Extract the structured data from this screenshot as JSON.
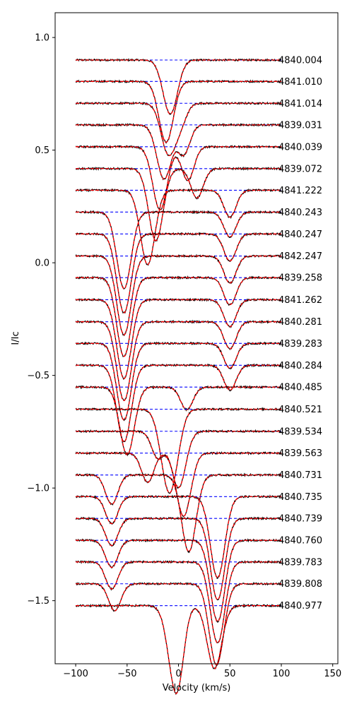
{
  "chart_data": {
    "type": "line",
    "title": "",
    "xlabel": "Velocity (km/s)",
    "ylabel": "I/Ic",
    "xlim": [
      -120,
      155
    ],
    "ylim": [
      -1.78,
      1.11
    ],
    "xticks": [
      -100,
      -50,
      0,
      50,
      100,
      150
    ],
    "xtick_labels": [
      "−100",
      "−50",
      "0",
      "50",
      "100",
      "150"
    ],
    "yticks": [
      1.0,
      0.5,
      0.0,
      -0.5,
      -1.0,
      -1.5
    ],
    "ytick_labels": [
      "1.0",
      "0.5",
      "0.0",
      "−0.5",
      "−1.0",
      "−1.5"
    ],
    "grid": false,
    "observed_color": "#000000",
    "fit_color": "#ff0000",
    "continuum_color": "#0000ff",
    "velocity_range": [
      -100,
      100
    ],
    "series": [
      {
        "label": "4840.004",
        "offset": 0.9,
        "components": [
          {
            "v": -8,
            "depth": 0.24,
            "width": 7
          }
        ]
      },
      {
        "label": "4841.010",
        "offset": 0.805,
        "components": [
          {
            "v": -12,
            "depth": 0.27,
            "width": 7
          }
        ]
      },
      {
        "label": "4841.014",
        "offset": 0.708,
        "components": [
          {
            "v": -10,
            "depth": 0.22,
            "width": 7
          },
          {
            "v": 2,
            "depth": 0.08,
            "width": 6
          }
        ]
      },
      {
        "label": "4839.031",
        "offset": 0.612,
        "components": [
          {
            "v": -14,
            "depth": 0.24,
            "width": 7
          },
          {
            "v": 5,
            "depth": 0.13,
            "width": 6
          }
        ]
      },
      {
        "label": "4840.039",
        "offset": 0.515,
        "components": [
          {
            "v": -18,
            "depth": 0.28,
            "width": 7
          },
          {
            "v": 9,
            "depth": 0.15,
            "width": 6
          }
        ]
      },
      {
        "label": "4839.072",
        "offset": 0.418,
        "components": [
          {
            "v": -22,
            "depth": 0.32,
            "width": 7
          },
          {
            "v": 18,
            "depth": 0.13,
            "width": 6
          }
        ]
      },
      {
        "label": "4841.222",
        "offset": 0.322,
        "components": [
          {
            "v": -30,
            "depth": 0.33,
            "width": 7
          },
          {
            "v": 50,
            "depth": 0.12,
            "width": 6
          }
        ]
      },
      {
        "label": "4840.243",
        "offset": 0.225,
        "components": [
          {
            "v": -53,
            "depth": 0.34,
            "width": 7
          },
          {
            "v": 50,
            "depth": 0.11,
            "width": 6
          }
        ]
      },
      {
        "label": "4840.247",
        "offset": 0.128,
        "components": [
          {
            "v": -53,
            "depth": 0.35,
            "width": 7
          },
          {
            "v": 50,
            "depth": 0.12,
            "width": 6
          }
        ]
      },
      {
        "label": "4842.247",
        "offset": 0.03,
        "components": [
          {
            "v": -53,
            "depth": 0.35,
            "width": 7
          },
          {
            "v": 50,
            "depth": 0.12,
            "width": 6
          }
        ]
      },
      {
        "label": "4839.258",
        "offset": -0.066,
        "components": [
          {
            "v": -53,
            "depth": 0.35,
            "width": 7
          },
          {
            "v": 50,
            "depth": 0.12,
            "width": 6
          }
        ]
      },
      {
        "label": "4841.262",
        "offset": -0.164,
        "components": [
          {
            "v": -53,
            "depth": 0.35,
            "width": 7
          },
          {
            "v": 50,
            "depth": 0.12,
            "width": 6
          }
        ]
      },
      {
        "label": "4840.281",
        "offset": -0.262,
        "components": [
          {
            "v": -53,
            "depth": 0.35,
            "width": 7
          },
          {
            "v": 50,
            "depth": 0.12,
            "width": 6
          }
        ]
      },
      {
        "label": "4839.283",
        "offset": -0.358,
        "components": [
          {
            "v": -53,
            "depth": 0.34,
            "width": 7
          },
          {
            "v": 50,
            "depth": 0.11,
            "width": 6
          }
        ]
      },
      {
        "label": "4840.284",
        "offset": -0.455,
        "components": [
          {
            "v": -53,
            "depth": 0.34,
            "width": 7
          },
          {
            "v": 50,
            "depth": 0.11,
            "width": 6
          }
        ]
      },
      {
        "label": "4840.485",
        "offset": -0.552,
        "components": [
          {
            "v": -50,
            "depth": 0.3,
            "width": 7
          },
          {
            "v": 8,
            "depth": 0.1,
            "width": 6
          }
        ]
      },
      {
        "label": "4840.521",
        "offset": -0.65,
        "components": [
          {
            "v": -12,
            "depth": 0.22,
            "width": 7
          },
          {
            "v": -5,
            "depth": 0.2,
            "width": 7
          }
        ]
      },
      {
        "label": "4839.534",
        "offset": -0.748,
        "components": [
          {
            "v": -20,
            "depth": 0.12,
            "width": 6
          },
          {
            "v": 0,
            "depth": 0.25,
            "width": 7
          }
        ]
      },
      {
        "label": "4839.563",
        "offset": -0.845,
        "components": [
          {
            "v": -30,
            "depth": 0.13,
            "width": 6
          },
          {
            "v": 5,
            "depth": 0.28,
            "width": 7
          }
        ]
      },
      {
        "label": "4840.731",
        "offset": -0.942,
        "components": [
          {
            "v": -65,
            "depth": 0.13,
            "width": 6
          },
          {
            "v": 10,
            "depth": 0.34,
            "width": 7
          }
        ]
      },
      {
        "label": "4840.735",
        "offset": -1.038,
        "components": [
          {
            "v": -65,
            "depth": 0.12,
            "width": 6
          },
          {
            "v": 38,
            "depth": 0.36,
            "width": 7
          }
        ]
      },
      {
        "label": "4840.739",
        "offset": -1.135,
        "components": [
          {
            "v": -65,
            "depth": 0.12,
            "width": 6
          },
          {
            "v": 38,
            "depth": 0.36,
            "width": 7
          }
        ]
      },
      {
        "label": "4840.760",
        "offset": -1.232,
        "components": [
          {
            "v": -65,
            "depth": 0.12,
            "width": 6
          },
          {
            "v": 38,
            "depth": 0.36,
            "width": 7
          }
        ]
      },
      {
        "label": "4839.783",
        "offset": -1.328,
        "components": [
          {
            "v": -65,
            "depth": 0.12,
            "width": 6
          },
          {
            "v": 38,
            "depth": 0.36,
            "width": 7
          }
        ]
      },
      {
        "label": "4839.808",
        "offset": -1.425,
        "components": [
          {
            "v": -62,
            "depth": 0.12,
            "width": 6
          },
          {
            "v": 37,
            "depth": 0.36,
            "width": 7
          }
        ]
      },
      {
        "label": "4840.977",
        "offset": -1.522,
        "components": [
          {
            "v": -5,
            "depth": 0.22,
            "width": 7
          },
          {
            "v": 0,
            "depth": 0.2,
            "width": 6
          },
          {
            "v": 35,
            "depth": 0.28,
            "width": 7
          }
        ]
      }
    ]
  }
}
